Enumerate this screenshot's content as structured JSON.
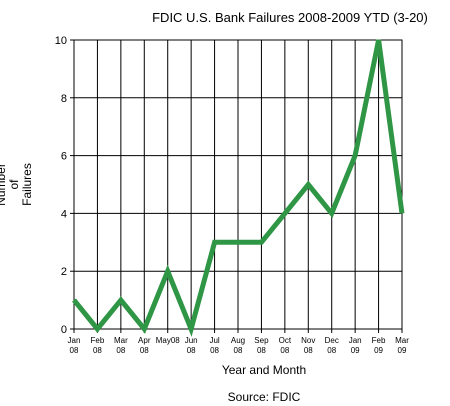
{
  "chart_data": {
    "type": "line",
    "title": "FDIC U.S. Bank Failures 2008-2009 YTD (3-20)",
    "xlabel": "Year and Month",
    "ylabel_lines": [
      "Number",
      "of",
      "Failures"
    ],
    "source": "Source: FDIC",
    "categories": [
      [
        "Jan",
        "08"
      ],
      [
        "Feb",
        "08"
      ],
      [
        "Mar",
        "08"
      ],
      [
        "Apr",
        "08"
      ],
      [
        "May08",
        ""
      ],
      [
        "Jun",
        "08"
      ],
      [
        "Jul",
        "08"
      ],
      [
        "Aug",
        "08"
      ],
      [
        "Sep",
        "08"
      ],
      [
        "Oct",
        "08"
      ],
      [
        "Nov",
        "08"
      ],
      [
        "Dec",
        "08"
      ],
      [
        "Jan",
        "09"
      ],
      [
        "Feb",
        "09"
      ],
      [
        "Mar",
        "09"
      ]
    ],
    "values": [
      1,
      0,
      1,
      0,
      2,
      0,
      3,
      3,
      3,
      4,
      5,
      4,
      6,
      10,
      4
    ],
    "ylim": [
      0,
      10
    ],
    "yticks": [
      0,
      2,
      4,
      6,
      8,
      10
    ],
    "grid": true,
    "line_color": "#2e9644"
  }
}
